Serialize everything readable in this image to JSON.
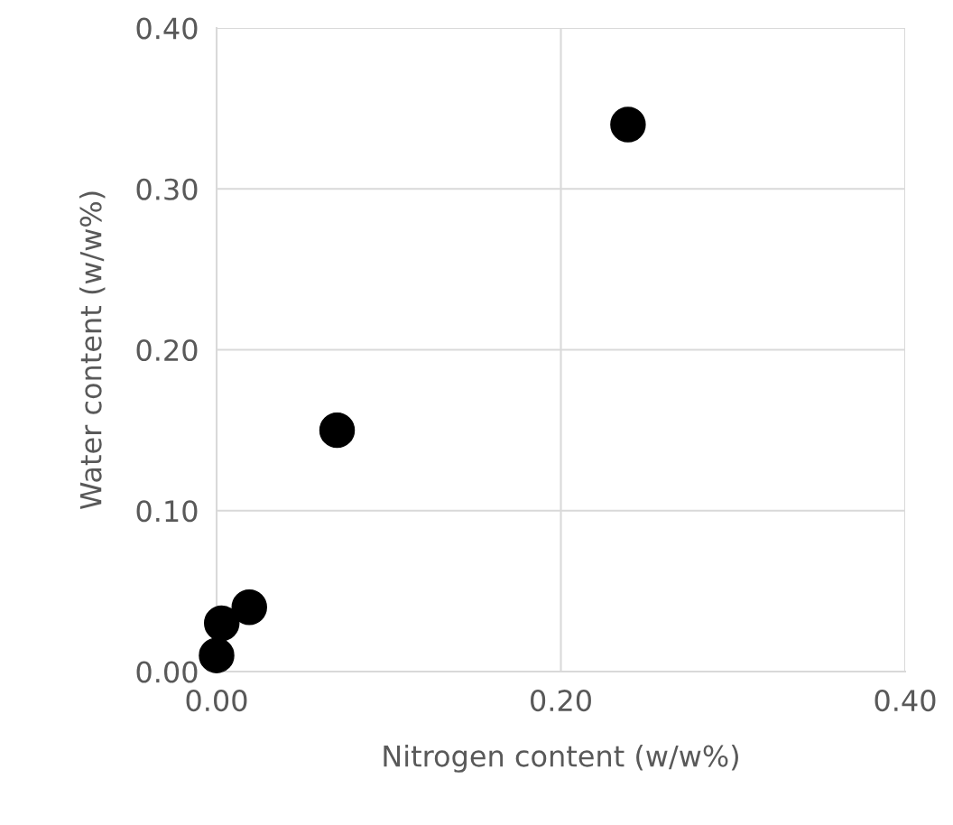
{
  "chart_data": {
    "type": "scatter",
    "xlabel": "Nitrogen content (w/w%)",
    "ylabel": "Water content (w/w%)",
    "x": [
      0.0,
      0.003,
      0.019,
      0.07,
      0.239
    ],
    "series": [
      {
        "color": "#000000",
        "values": [
          0.01,
          0.03,
          0.04,
          0.15,
          0.34
        ]
      }
    ],
    "xlim": [
      0,
      0.4
    ],
    "ylim": [
      0,
      0.4
    ],
    "xticks": [
      {
        "value": 0,
        "label": "0.00"
      },
      {
        "value": 0.2,
        "label": "0.20"
      },
      {
        "value": 0.4,
        "label": "0.40"
      }
    ],
    "yticks": [
      {
        "value": 0,
        "label": "0.00"
      },
      {
        "value": 0.1,
        "label": "0.10"
      },
      {
        "value": 0.2,
        "label": "0.20"
      },
      {
        "value": 0.3,
        "label": "0.30"
      },
      {
        "value": 0.4,
        "label": "0.40"
      }
    ],
    "grid": true,
    "marker": "circle",
    "legend": false
  }
}
